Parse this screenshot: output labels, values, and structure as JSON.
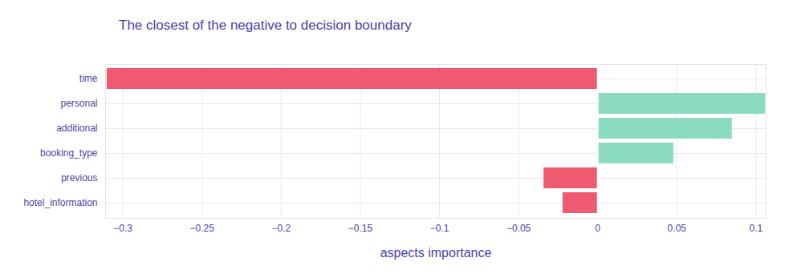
{
  "chart_data": {
    "type": "bar",
    "title": "The closest of the negative to decision boundary",
    "orientation": "horizontal",
    "categories": [
      "time",
      "personal",
      "additional",
      "booking_type",
      "previous",
      "hotel_information"
    ],
    "values": [
      -0.31,
      0.106,
      0.085,
      0.048,
      -0.034,
      -0.022
    ],
    "colors": [
      "#f05a71",
      "#8bdbc0",
      "#8bdbc0",
      "#8bdbc0",
      "#f05a71",
      "#f05a71"
    ],
    "xlabel": "aspects importance",
    "xlim": [
      -0.311,
      0.1064
    ],
    "xticks": [
      {
        "value": -0.3,
        "label": "−0.3"
      },
      {
        "value": -0.25,
        "label": "−0.25"
      },
      {
        "value": -0.2,
        "label": "−0.2"
      },
      {
        "value": -0.15,
        "label": "−0.15"
      },
      {
        "value": -0.1,
        "label": "−0.1"
      },
      {
        "value": -0.05,
        "label": "−0.05"
      },
      0,
      0.05,
      0.1
    ],
    "grid": true
  }
}
